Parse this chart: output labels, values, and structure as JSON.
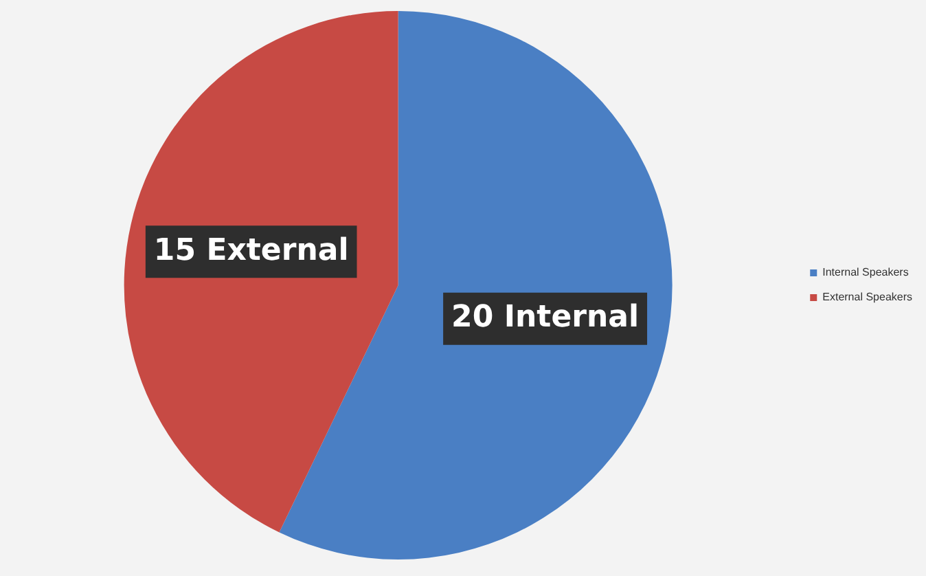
{
  "chart_data": {
    "type": "pie",
    "categories": [
      "Internal Speakers",
      "External Speakers"
    ],
    "values": [
      20,
      15
    ],
    "colors": [
      "#4a7fc4",
      "#c74a44"
    ],
    "value_labels": [
      "20 Internal",
      "15 External"
    ],
    "legend": "right"
  }
}
